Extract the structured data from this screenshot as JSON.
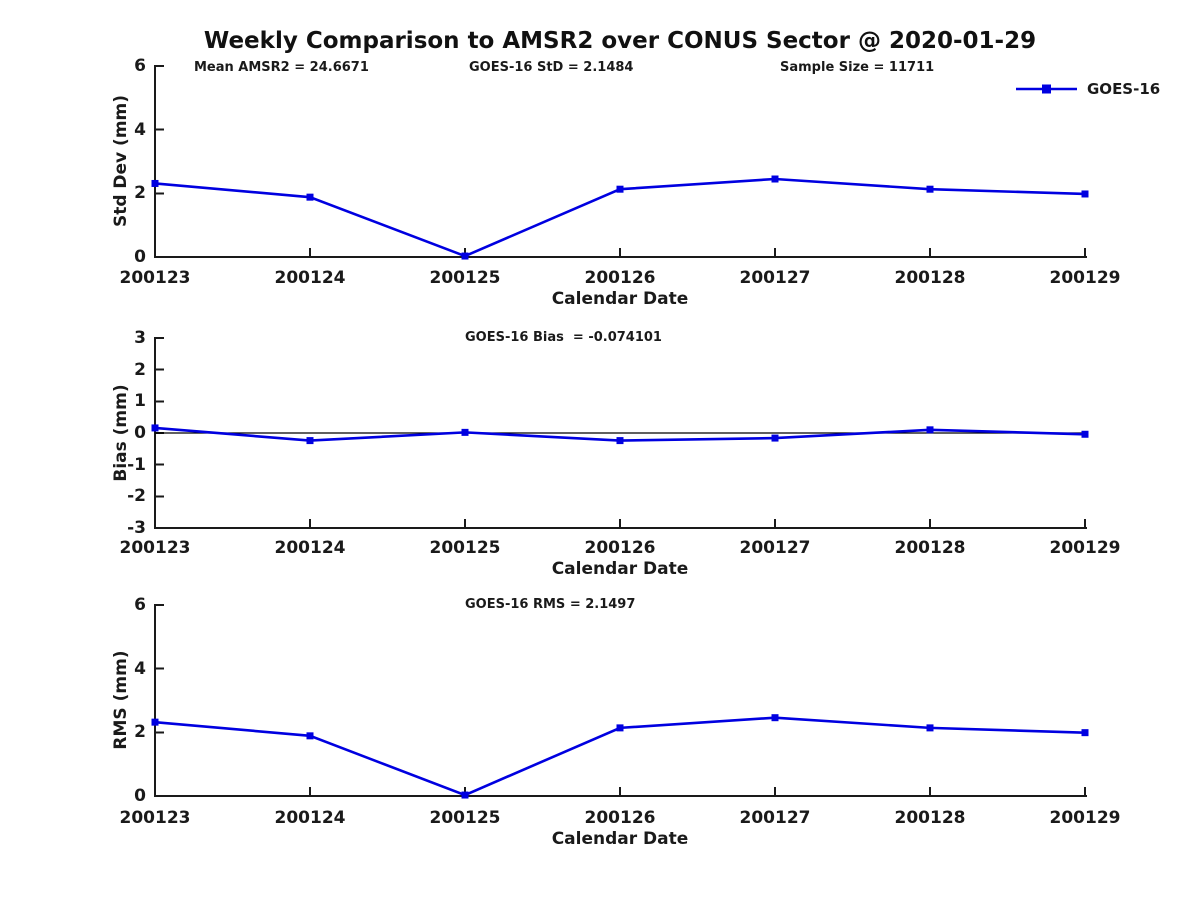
{
  "page": {
    "title": "Weekly Comparison to AMSR2 over CONUS Sector @ 2020-01-29"
  },
  "colors": {
    "line": "#0000E0",
    "axis": "#1a1a1a",
    "text": "#1a1a1a",
    "zero_line": "#000000"
  },
  "legend": {
    "label": "GOES-16",
    "position": "top-right-of-first-chart"
  },
  "chart_data": [
    {
      "type": "line",
      "title": "",
      "annotations": [
        "Mean AMSR2 = 24.6671",
        "GOES-16 StD = 2.1484",
        "Sample Size = 11711"
      ],
      "categories": [
        "200123",
        "200124",
        "200125",
        "200126",
        "200127",
        "200128",
        "200129"
      ],
      "series": [
        {
          "name": "GOES-16",
          "values": [
            2.31,
            1.88,
            0.03,
            2.13,
            2.45,
            2.13,
            1.98
          ]
        }
      ],
      "xlabel": "Calendar Date",
      "ylabel": "Std Dev (mm)",
      "ylim": [
        0,
        6
      ],
      "yticks": [
        0,
        2,
        4,
        6
      ],
      "grid": false,
      "zero_line": false,
      "marker": "square",
      "legend_position": "upper right"
    },
    {
      "type": "line",
      "title": "GOES-16 Bias  = -0.074101",
      "categories": [
        "200123",
        "200124",
        "200125",
        "200126",
        "200127",
        "200128",
        "200129"
      ],
      "series": [
        {
          "name": "GOES-16",
          "values": [
            0.16,
            -0.24,
            0.02,
            -0.24,
            -0.16,
            0.1,
            -0.04
          ]
        }
      ],
      "xlabel": "Calendar Date",
      "ylabel": "Bias (mm)",
      "ylim": [
        -3,
        3
      ],
      "yticks": [
        -3,
        -2,
        -1,
        0,
        1,
        2,
        3
      ],
      "grid": false,
      "zero_line": true,
      "marker": "square"
    },
    {
      "type": "line",
      "title": "GOES-16 RMS = 2.1497",
      "categories": [
        "200123",
        "200124",
        "200125",
        "200126",
        "200127",
        "200128",
        "200129"
      ],
      "series": [
        {
          "name": "GOES-16",
          "values": [
            2.32,
            1.89,
            0.03,
            2.14,
            2.46,
            2.14,
            1.99
          ]
        }
      ],
      "xlabel": "Calendar Date",
      "ylabel": "RMS (mm)",
      "ylim": [
        0,
        6
      ],
      "yticks": [
        0,
        2,
        4,
        6
      ],
      "grid": false,
      "zero_line": false,
      "marker": "square"
    }
  ]
}
